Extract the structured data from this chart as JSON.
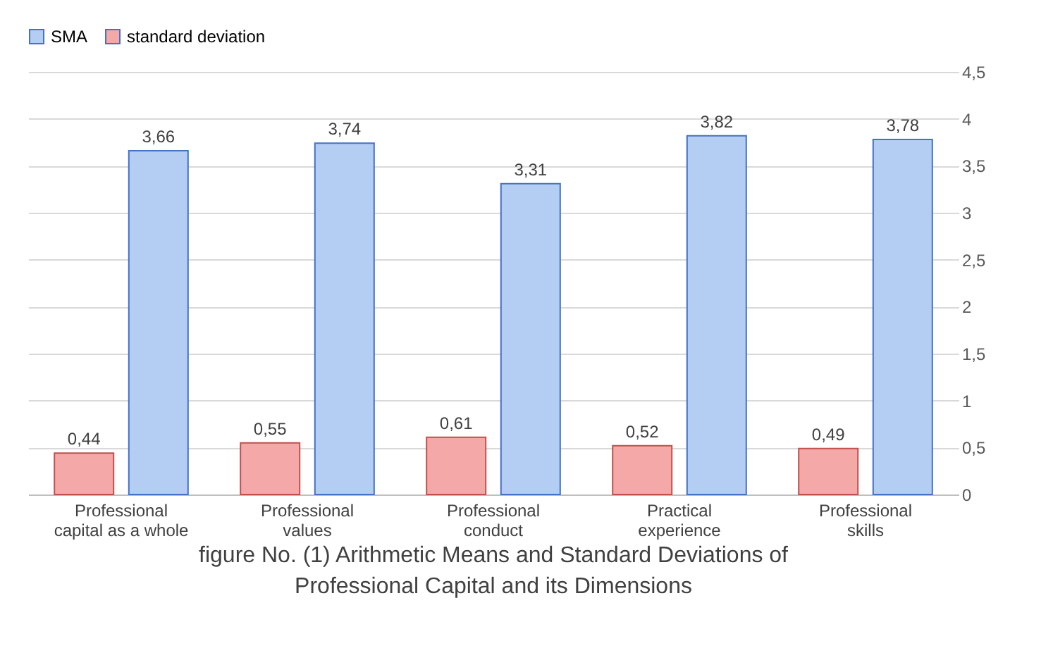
{
  "chart_data": {
    "type": "bar",
    "title": "figure No. (1) Arithmetic Means and Standard Deviations of Professional Capital and its Dimensions",
    "categories": [
      "Professional capital as a whole",
      "Professional values",
      "Professional conduct",
      "Practical experience",
      "Professional skills"
    ],
    "series": [
      {
        "name": "standard deviation",
        "color": "#f4a9a8",
        "values": [
          0.44,
          0.55,
          0.61,
          0.52,
          0.49
        ],
        "value_labels": [
          "0,44",
          "0,55",
          "0,61",
          "0,52",
          "0,49"
        ]
      },
      {
        "name": "SMA",
        "color": "#b4cdf3",
        "values": [
          3.66,
          3.74,
          3.31,
          3.82,
          3.78
        ],
        "value_labels": [
          "3,66",
          "3,74",
          "3,31",
          "3,82",
          "3,78"
        ]
      }
    ],
    "ylim": [
      0,
      4.5
    ],
    "yticks": [
      0,
      {
        "value": 0.5,
        "label": "0,5"
      },
      1,
      {
        "value": 1.5,
        "label": "1,5"
      },
      2,
      {
        "value": 2.5,
        "label": "2,5"
      },
      3,
      {
        "value": 3.5,
        "label": "3,5"
      },
      4,
      {
        "value": 4.5,
        "label": "4,5"
      }
    ],
    "grid": "y",
    "legend": "top"
  }
}
